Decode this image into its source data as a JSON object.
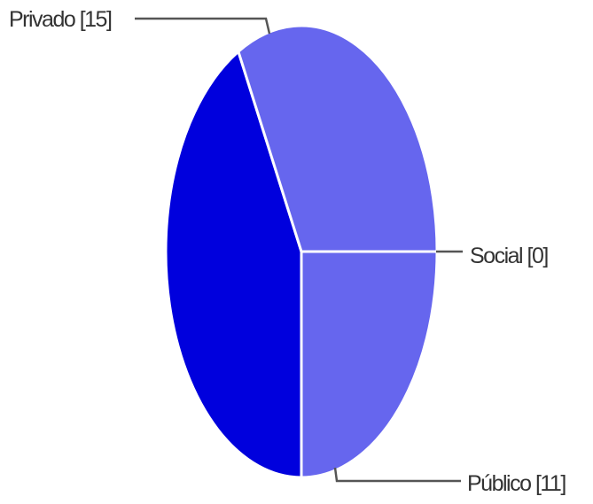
{
  "chart_data": {
    "type": "pie",
    "start_angle_deg": 90,
    "direction": "clockwise",
    "slices": [
      {
        "label": "Público [11]",
        "value": 11,
        "color": "#0000dd"
      },
      {
        "label": "Privado [15]",
        "value": 15,
        "color": "#6666ee"
      },
      {
        "label": "Social [0]",
        "value": 0,
        "color": "#3a3a9f"
      }
    ],
    "legend": "leader-lines"
  }
}
